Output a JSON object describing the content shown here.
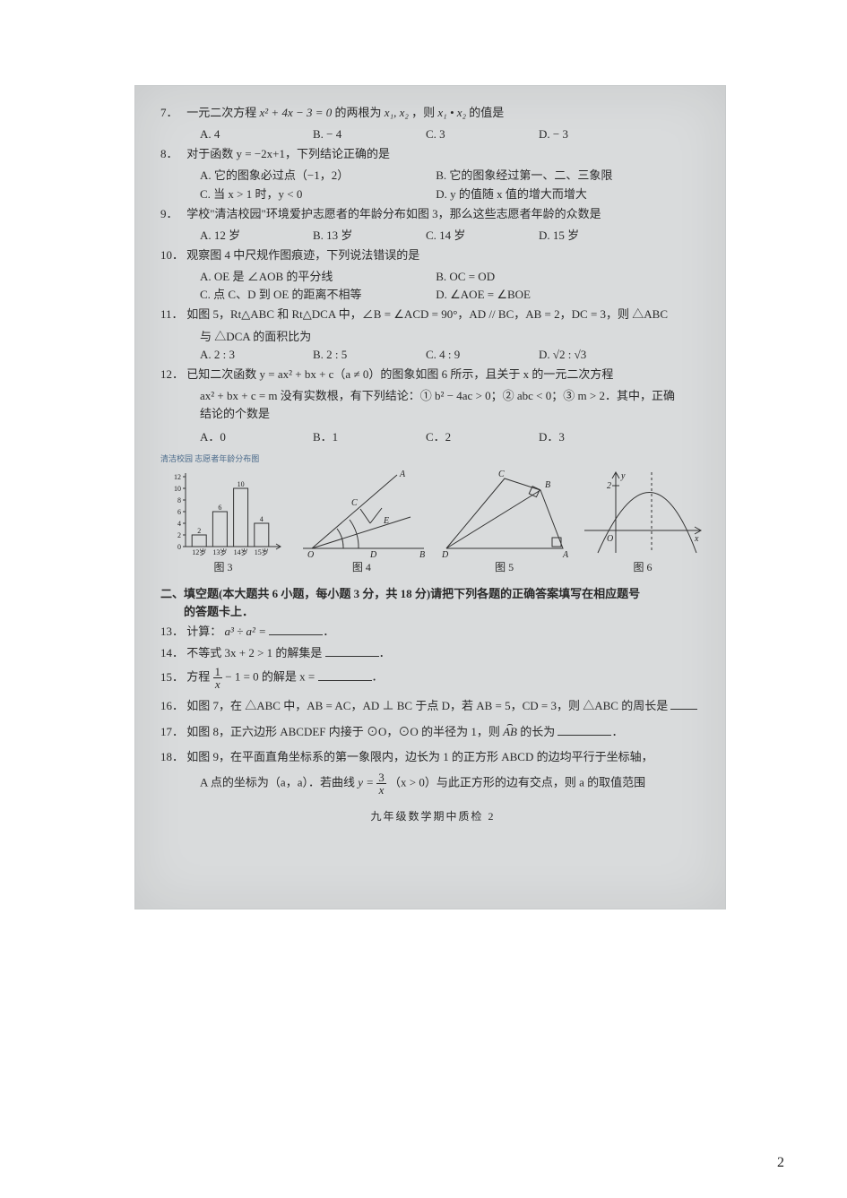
{
  "questions": {
    "q7": {
      "num": "7．",
      "text_a": "一元二次方程 ",
      "expr": "x² + 4x − 3 = 0",
      "text_b": " 的两根为 ",
      "roots": "x₁, x₂",
      "text_c": " ，则 ",
      "prod": "x₁ • x₂",
      "text_d": " 的值是",
      "A": "A. 4",
      "B": "B. − 4",
      "C": "C. 3",
      "D": "D. − 3"
    },
    "q8": {
      "num": "8．",
      "text": "对于函数 y = −2x+1，下列结论正确的是",
      "A": "A. 它的图象必过点（−1，2）",
      "B": "B. 它的图象经过第一、二、三象限",
      "C": "C. 当 x > 1 时，y < 0",
      "D": "D. y 的值随 x 值的增大而增大"
    },
    "q9": {
      "num": "9．",
      "text": "学校\"清洁校园\"环境爱护志愿者的年龄分布如图 3，那么这些志愿者年龄的众数是",
      "A": "A. 12 岁",
      "B": "B. 13 岁",
      "C": "C. 14 岁",
      "D": "D. 15 岁"
    },
    "q10": {
      "num": "10．",
      "text": "观察图 4 中尺规作图痕迹，下列说法错误的是",
      "A": "A. OE 是 ∠AOB 的平分线",
      "B": "B. OC = OD",
      "C": "C. 点 C、D 到 OE 的距离不相等",
      "D": "D. ∠AOE = ∠BOE"
    },
    "q11": {
      "num": "11．",
      "text_a": "如图 5，Rt△ABC 和 Rt△DCA 中，∠B = ∠ACD = 90°，AD // BC，AB = 2，DC = 3，则 △ABC",
      "text_b": "与 △DCA 的面积比为",
      "A": "A. 2 : 3",
      "B": "B. 2 : 5",
      "C": "C. 4 : 9",
      "D": "D. √2 : √3"
    },
    "q12": {
      "num": "12．",
      "line1": "已知二次函数 y = ax² + bx + c（a ≠ 0）的图象如图 6 所示，且关于 x 的一元二次方程",
      "line2": "ax² + bx + c = m 没有实数根，有下列结论：① b² − 4ac > 0；② abc < 0；③ m > 2．其中，正确",
      "line3": "结论的个数是",
      "A": "A．0",
      "B": "B．1",
      "C": "C．2",
      "D": "D．3"
    }
  },
  "figures": {
    "fig3": {
      "title": "清洁校园 志愿者年龄分布图",
      "label": "图 3",
      "yticks": [
        "0",
        "2",
        "4",
        "6",
        "8",
        "10",
        "12"
      ],
      "xticks": [
        "12岁",
        "13岁",
        "14岁",
        "15岁"
      ],
      "values": [
        2,
        6,
        10,
        4
      ],
      "bar_labels": [
        "2",
        "6",
        "10",
        "4"
      ],
      "ymax": 12,
      "bar_color": "#d9dbdc",
      "bar_stroke": "#333",
      "axis_color": "#333",
      "tick_fontsize": 8
    },
    "fig4": {
      "label": "图 4",
      "stroke": "#333",
      "pts": {
        "O": "O",
        "A": "A",
        "B": "B",
        "C": "C",
        "D": "D",
        "E": "E"
      }
    },
    "fig5": {
      "label": "图 5",
      "stroke": "#333",
      "pts": {
        "A": "A",
        "B": "B",
        "C": "C",
        "D": "D"
      }
    },
    "fig6": {
      "label": "图 6",
      "stroke": "#333",
      "vertex_y": "2",
      "axis_x": "x",
      "axis_y": "y",
      "origin": "O"
    }
  },
  "section2": {
    "head": "二、填空题(本大题共 6 小题，每小题 3 分，共 18 分)请把下列各题的正确答案填写在相应题号",
    "head2": "的答题卡上．",
    "q13": {
      "num": "13．",
      "text_a": "计算：",
      "expr": "a³ ÷ a² ="
    },
    "q14": {
      "num": "14．",
      "text": "不等式 3x + 2 > 1 的解集是"
    },
    "q15": {
      "num": "15．",
      "text_a": "方程 ",
      "frac_n": "1",
      "frac_d": "x",
      "text_b": " − 1 = 0 的解是 x ="
    },
    "q16": {
      "num": "16．",
      "text": "如图 7，在 △ABC 中，AB = AC，AD ⊥ BC 于点 D，若 AB = 5，CD = 3，则 △ABC 的周长是"
    },
    "q17": {
      "num": "17．",
      "text_a": "如图 8，正六边形 ABCDEF 内接于 ⊙O，⊙O 的半径为 1，则 ",
      "arc": "A͡B",
      "text_b": " 的长为"
    },
    "q18": {
      "num": "18．",
      "line1": "如图 9，在平面直角坐标系的第一象限内，边长为 1 的正方形 ABCD 的边均平行于坐标轴，",
      "line2_a": "A 点的坐标为（a，a）．若曲线 ",
      "frac_n": "3",
      "frac_d": "x",
      "line2_b": "（x > 0）与此正方形的边有交点，则 a 的取值范围"
    }
  },
  "footer": "九年级数学期中质检  2",
  "page_corner": "2",
  "colors": {
    "page_bg": "#ffffff",
    "scan_bg": "#d9dbdc",
    "text": "#2a2a2a",
    "axis": "#333"
  }
}
